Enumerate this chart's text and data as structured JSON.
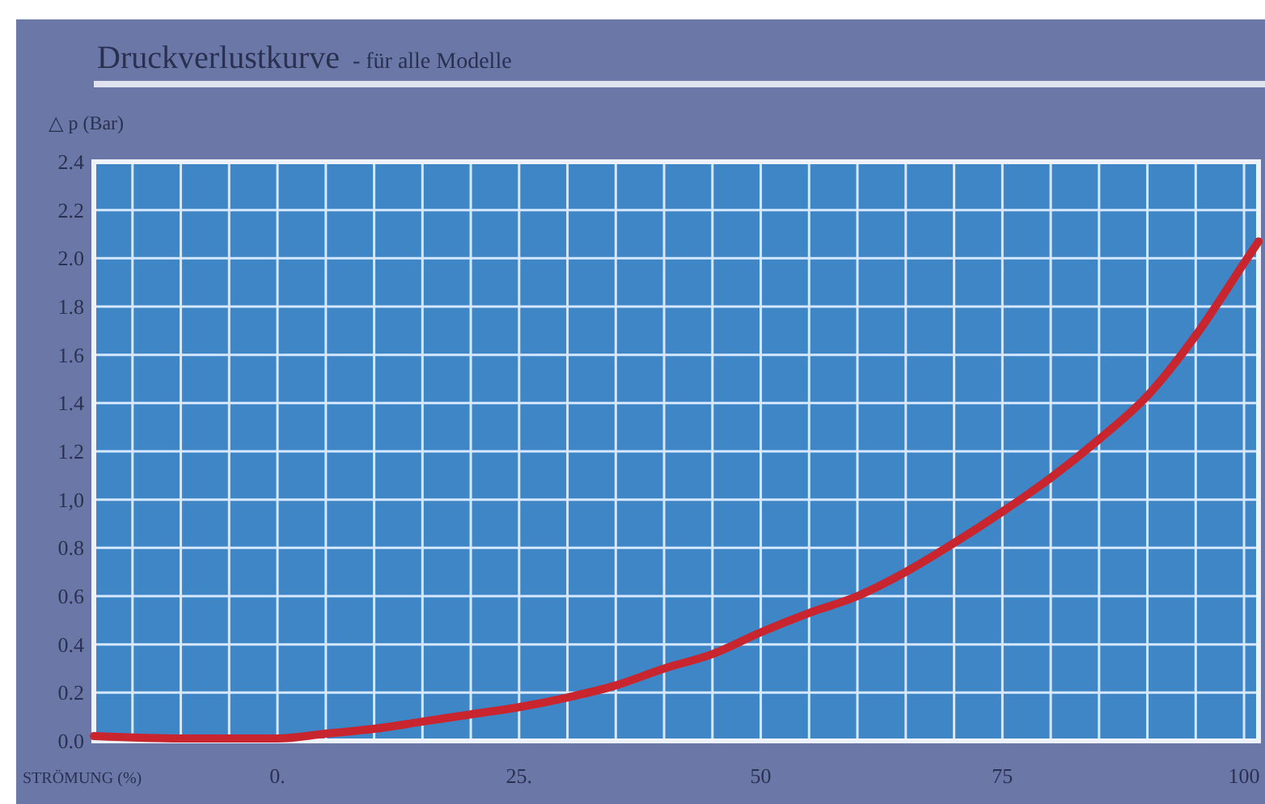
{
  "chart_data": {
    "type": "line",
    "title": "Druckverlustkurve",
    "subtitle": "- für alle Modelle",
    "xlabel": "STRÖMUNG (%)",
    "ylabel": "△ p (Bar)",
    "x": [
      -19,
      -10,
      0,
      5,
      10,
      15,
      20,
      25,
      30,
      35,
      40,
      45,
      50,
      55,
      60,
      65,
      70,
      75,
      80,
      85,
      90,
      95,
      100,
      101.5
    ],
    "series": [
      {
        "color": "#c8252f",
        "values": [
          0.02,
          0.01,
          0.01,
          0.03,
          0.05,
          0.08,
          0.11,
          0.14,
          0.18,
          0.23,
          0.3,
          0.36,
          0.45,
          0.53,
          0.6,
          0.7,
          0.82,
          0.95,
          1.09,
          1.25,
          1.43,
          1.68,
          1.98,
          2.07
        ]
      }
    ],
    "xlim": [
      -19,
      101.5
    ],
    "ylim": [
      0,
      2.4
    ],
    "xticks": [
      {
        "value": -15,
        "label": null
      },
      {
        "value": -10,
        "label": null
      },
      {
        "value": -5,
        "label": null
      },
      {
        "value": 0,
        "label": "0."
      },
      {
        "value": 5,
        "label": null
      },
      {
        "value": 10,
        "label": null
      },
      {
        "value": 15,
        "label": null
      },
      {
        "value": 20,
        "label": null
      },
      {
        "value": 25,
        "label": "25."
      },
      {
        "value": 30,
        "label": null
      },
      {
        "value": 35,
        "label": null
      },
      {
        "value": 40,
        "label": null
      },
      {
        "value": 45,
        "label": null
      },
      {
        "value": 50,
        "label": "50"
      },
      {
        "value": 55,
        "label": null
      },
      {
        "value": 60,
        "label": null
      },
      {
        "value": 65,
        "label": null
      },
      {
        "value": 70,
        "label": null
      },
      {
        "value": 75,
        "label": "75"
      },
      {
        "value": 80,
        "label": null
      },
      {
        "value": 85,
        "label": null
      },
      {
        "value": 90,
        "label": null
      },
      {
        "value": 95,
        "label": null
      },
      {
        "value": 100,
        "label": "100"
      }
    ],
    "yticks": [
      {
        "value": 0,
        "label": "0.0"
      },
      {
        "value": 0.2,
        "label": "0.2"
      },
      {
        "value": 0.4,
        "label": "0.4"
      },
      {
        "value": 0.6,
        "label": "0.6"
      },
      {
        "value": 0.8,
        "label": "0.8"
      },
      {
        "value": 1,
        "label": "1,0"
      },
      {
        "value": 1.2,
        "label": "1.2"
      },
      {
        "value": 1.4,
        "label": "1.4"
      },
      {
        "value": 1.6,
        "label": "1.6"
      },
      {
        "value": 1.8,
        "label": "1.8"
      },
      {
        "value": 2,
        "label": "2.0"
      },
      {
        "value": 2.2,
        "label": "2.2"
      },
      {
        "value": 2.4,
        "label": "2.4"
      }
    ],
    "grid": true,
    "line_style": "solid",
    "marker": "none"
  }
}
